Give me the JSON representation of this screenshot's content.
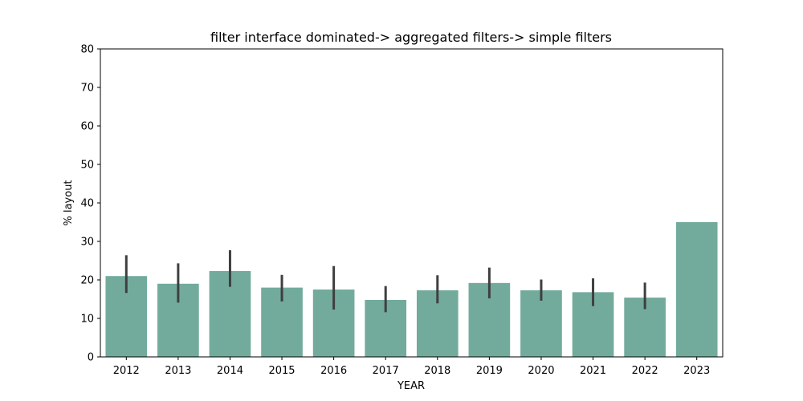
{
  "chart_data": {
    "type": "bar",
    "title": "filter interface dominated-> aggregated filters-> simple filters",
    "xlabel": "YEAR",
    "ylabel": "% layout",
    "ylim": [
      0,
      80
    ],
    "yticks": [
      0,
      10,
      20,
      30,
      40,
      50,
      60,
      70,
      80
    ],
    "grid": false,
    "categories": [
      "2012",
      "2013",
      "2014",
      "2015",
      "2016",
      "2017",
      "2018",
      "2019",
      "2020",
      "2021",
      "2022",
      "2023"
    ],
    "values": [
      21.0,
      19.0,
      22.3,
      18.0,
      17.5,
      14.8,
      17.3,
      19.2,
      17.3,
      16.8,
      15.4,
      35.0
    ],
    "error_low": [
      16.6,
      14.1,
      18.2,
      14.4,
      12.3,
      11.6,
      13.9,
      15.2,
      14.6,
      13.2,
      12.4,
      null
    ],
    "error_high": [
      26.4,
      24.3,
      27.7,
      21.3,
      23.6,
      18.4,
      21.2,
      23.2,
      20.1,
      20.4,
      19.3,
      null
    ],
    "colors": {
      "bar": "#72ab9c",
      "error": "#3f3f3f",
      "axis": "#000000"
    }
  }
}
